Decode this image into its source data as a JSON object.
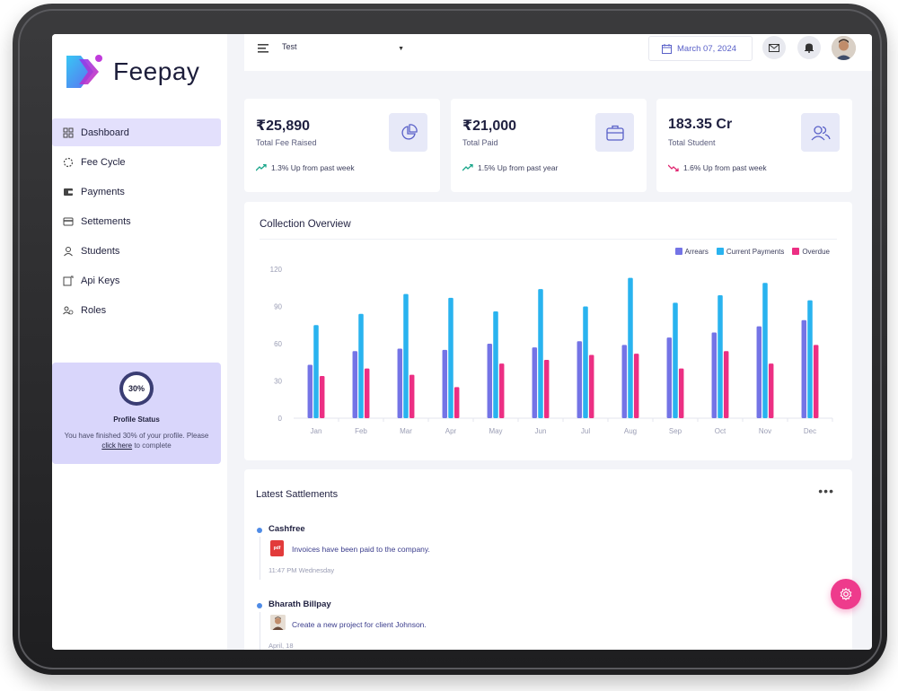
{
  "brand": {
    "name": "Feepay",
    "colors": {
      "primary": "#5960c8",
      "accent": "#ee3b8c",
      "active_nav": "#e3e0fc"
    }
  },
  "sidebar": {
    "items": [
      {
        "label": "Dashboard",
        "icon": "grid-icon",
        "active": true
      },
      {
        "label": "Fee Cycle",
        "icon": "cycle-icon"
      },
      {
        "label": "Payments",
        "icon": "wallet-icon"
      },
      {
        "label": "Settements",
        "icon": "card-icon"
      },
      {
        "label": "Students",
        "icon": "student-icon"
      },
      {
        "label": "Api Keys",
        "icon": "key-icon"
      },
      {
        "label": "Roles",
        "icon": "roles-icon"
      }
    ],
    "profile": {
      "percent_label": "30%",
      "percent": 30,
      "title": "Profile Status",
      "text_before": "You have finished 30% of your profile. Please",
      "link": "click here",
      "text_after": " to complete"
    }
  },
  "topbar": {
    "select_value": "Test",
    "date": "March 07, 2024"
  },
  "stats": [
    {
      "value": "₹25,890",
      "label": "Total Fee Raised",
      "trend": "1.3% Up from past week",
      "direction": "up",
      "icon": "pie-chart-icon"
    },
    {
      "value": "₹21,000",
      "label": "Total Paid",
      "trend": "1.5% Up from past year",
      "direction": "up",
      "icon": "briefcase-icon"
    },
    {
      "value": "183.35 Cr",
      "label": "Total Student",
      "trend": "1.6% Up from past week",
      "direction": "down",
      "icon": "users-icon"
    }
  ],
  "chart_data": {
    "type": "bar",
    "title": "Collection Overview",
    "categories": [
      "Jan",
      "Feb",
      "Mar",
      "Apr",
      "May",
      "Jun",
      "Jul",
      "Aug",
      "Sep",
      "Oct",
      "Nov",
      "Dec"
    ],
    "series": [
      {
        "name": "Arrears",
        "color": "#7474e6",
        "values": [
          43,
          54,
          56,
          55,
          60,
          57,
          62,
          59,
          65,
          69,
          74,
          79
        ]
      },
      {
        "name": "Current Payments",
        "color": "#29b3ef",
        "values": [
          75,
          84,
          100,
          97,
          86,
          104,
          90,
          113,
          93,
          99,
          109,
          95
        ]
      },
      {
        "name": "Overdue",
        "color": "#ec2f83",
        "values": [
          34,
          40,
          35,
          25,
          44,
          47,
          51,
          52,
          40,
          54,
          44,
          59
        ]
      }
    ],
    "yticks": [
      "0",
      "30",
      "60",
      "90",
      "120"
    ],
    "ylim": [
      0,
      120
    ],
    "legend_position": "top-right",
    "grid": false
  },
  "settlements": {
    "title": "Latest Sattlements",
    "more": "•••",
    "items": [
      {
        "name": "Cashfree",
        "desc": "Invoices have been paid to the company.",
        "time": "11:47 PM Wednesday",
        "icon": "pdf-icon",
        "icon_text": "pdf"
      },
      {
        "name": "Bharath Billpay",
        "desc": "Create a new project for client Johnson.",
        "time": "April, 18",
        "icon": "avatar-icon"
      }
    ]
  }
}
